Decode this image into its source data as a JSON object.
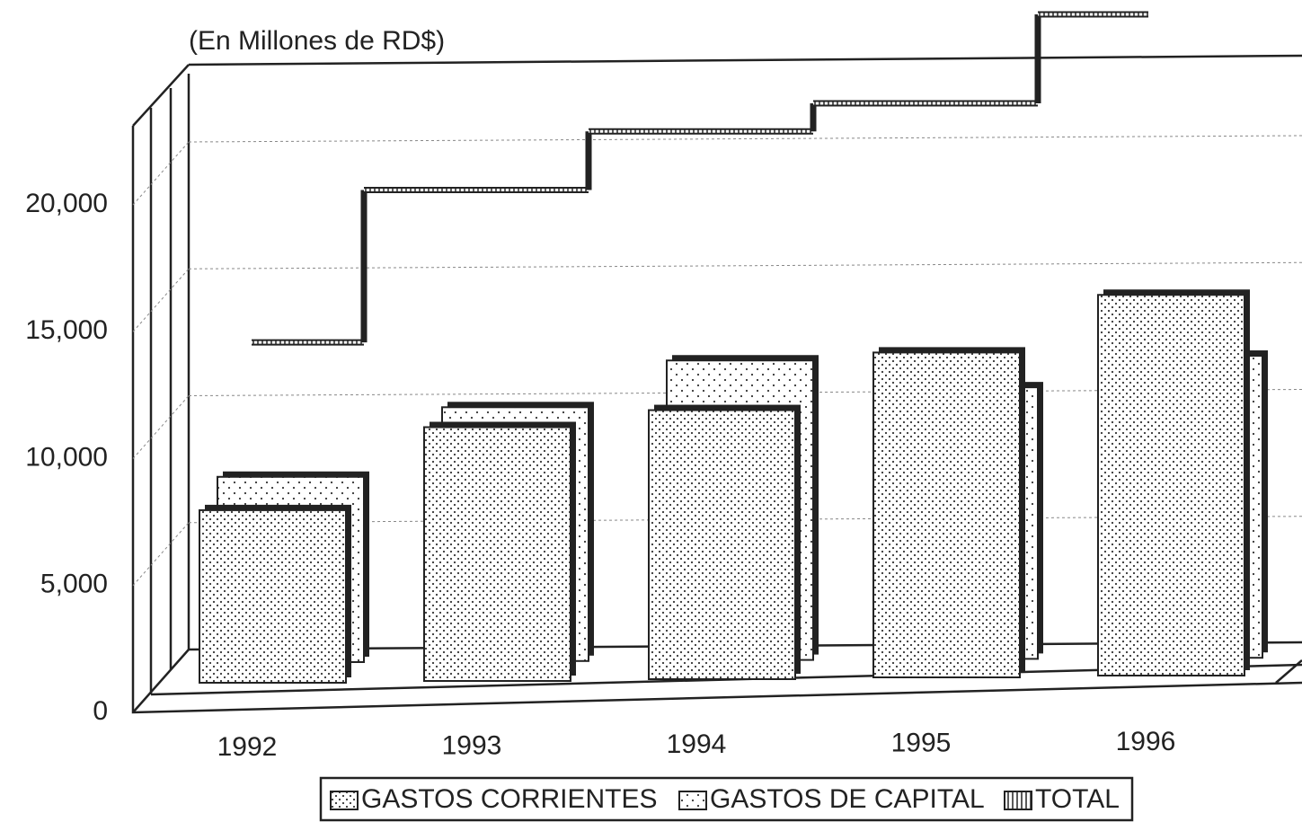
{
  "chart_data": {
    "type": "bar3d",
    "title": "(En Millones de RD$)",
    "categories": [
      "1992",
      "1993",
      "1994",
      "1995",
      "1996"
    ],
    "series": [
      {
        "name": "GASTOS CORRIENTES",
        "color": "#ffffff",
        "values": [
          6800,
          10000,
          10600,
          12800,
          15000
        ]
      },
      {
        "name": "GASTOS DE CAPITAL",
        "color": "#ffffff",
        "values": [
          7300,
          10000,
          11800,
          10700,
          11900
        ]
      },
      {
        "name": "TOTAL",
        "color": "#ffffff",
        "values": [
          12100,
          18100,
          20400,
          21500,
          25000
        ]
      }
    ],
    "ylim": [
      0,
      25000
    ],
    "yticks": [
      0,
      {
        "value": 5000,
        "label": "5,000"
      },
      {
        "value": 10000,
        "label": "10,000"
      },
      {
        "value": 15000,
        "label": "15,000"
      },
      {
        "value": 20000,
        "label": "20,000"
      }
    ],
    "grid": true
  }
}
